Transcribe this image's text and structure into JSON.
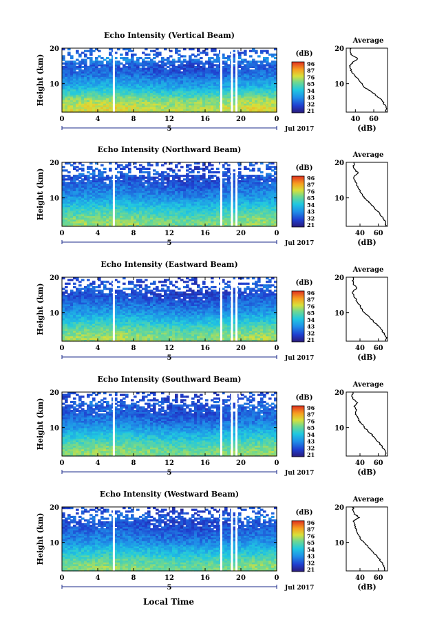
{
  "figure": {
    "x_axis_label": "Local Time",
    "date_label": "Jul 2017",
    "day_label": "5",
    "colorbar_unit": "(dB)",
    "colorbar_ticks": [
      "96",
      "87",
      "76",
      "65",
      "54",
      "43",
      "32",
      "21"
    ],
    "average_title": "Average",
    "average_xlabel": "(dB)"
  },
  "chart_data": [
    {
      "type": "heatmap",
      "title": "Echo Intensity (Vertical Beam)",
      "ylabel": "Height (km)",
      "xlabel": "Local Time",
      "x_ticks": [
        "0",
        "4",
        "8",
        "12",
        "16",
        "20",
        "0"
      ],
      "y_ticks": [
        "10",
        "20"
      ],
      "xlim": [
        0,
        24
      ],
      "ylim": [
        2,
        20
      ],
      "zlim_db": [
        21,
        96
      ],
      "data_gaps_hours": [
        5.8,
        17.8,
        19.0,
        19.5
      ],
      "average_profile": {
        "x_ticks": [
          "40",
          "60"
        ],
        "xlim": [
          30,
          75
        ],
        "heights_km": [
          2,
          3,
          4,
          5,
          6,
          7,
          8,
          9,
          10,
          11,
          12,
          13,
          14,
          15,
          16,
          17,
          18,
          19,
          20
        ],
        "intensity_db": [
          73,
          74,
          72,
          70,
          66,
          61,
          56,
          50,
          47,
          44,
          40,
          37,
          35,
          34,
          37,
          43,
          36,
          34,
          35
        ]
      }
    },
    {
      "type": "heatmap",
      "title": "Echo Intensity (Northward Beam)",
      "ylabel": "Height (km)",
      "xlabel": "Local Time",
      "x_ticks": [
        "0",
        "4",
        "8",
        "12",
        "16",
        "20",
        "0"
      ],
      "y_ticks": [
        "10",
        "20"
      ],
      "xlim": [
        0,
        24
      ],
      "ylim": [
        2,
        20
      ],
      "zlim_db": [
        21,
        96
      ],
      "data_gaps_hours": [
        5.8,
        17.8,
        19.0,
        19.5
      ],
      "average_profile": {
        "x_ticks": [
          "40",
          "60"
        ],
        "xlim": [
          25,
          70
        ],
        "heights_km": [
          2,
          3,
          4,
          5,
          6,
          7,
          8,
          9,
          10,
          11,
          12,
          13,
          14,
          15,
          16,
          17,
          18,
          19,
          20
        ],
        "intensity_db": [
          68,
          68,
          66,
          63,
          60,
          56,
          53,
          49,
          45,
          42,
          40,
          38,
          36,
          34,
          33,
          38,
          34,
          33,
          34
        ]
      }
    },
    {
      "type": "heatmap",
      "title": "Echo Intensity (Eastward Beam)",
      "ylabel": "Height (km)",
      "xlabel": "Local Time",
      "x_ticks": [
        "0",
        "4",
        "8",
        "12",
        "16",
        "20",
        "0"
      ],
      "y_ticks": [
        "10",
        "20"
      ],
      "xlim": [
        0,
        24
      ],
      "ylim": [
        2,
        20
      ],
      "zlim_db": [
        21,
        96
      ],
      "data_gaps_hours": [
        5.8,
        17.8,
        19.0,
        19.5
      ],
      "average_profile": {
        "x_ticks": [
          "40",
          "60"
        ],
        "xlim": [
          25,
          70
        ],
        "heights_km": [
          2,
          3,
          4,
          5,
          6,
          7,
          8,
          9,
          10,
          11,
          12,
          13,
          14,
          15,
          16,
          17,
          18,
          19,
          20
        ],
        "intensity_db": [
          68,
          69,
          67,
          64,
          61,
          57,
          53,
          49,
          45,
          42,
          40,
          37,
          35,
          33,
          32,
          37,
          33,
          32,
          33
        ]
      }
    },
    {
      "type": "heatmap",
      "title": "Echo Intensity (Southward Beam)",
      "ylabel": "Height (km)",
      "xlabel": "Local Time",
      "x_ticks": [
        "0",
        "4",
        "8",
        "12",
        "16",
        "20",
        "0"
      ],
      "y_ticks": [
        "10",
        "20"
      ],
      "xlim": [
        0,
        24
      ],
      "ylim": [
        2,
        20
      ],
      "zlim_db": [
        21,
        96
      ],
      "data_gaps_hours": [
        5.8,
        17.8,
        19.0,
        19.5
      ],
      "average_profile": {
        "x_ticks": [
          "40",
          "60"
        ],
        "xlim": [
          25,
          70
        ],
        "heights_km": [
          2,
          3,
          4,
          5,
          6,
          7,
          8,
          9,
          10,
          11,
          12,
          13,
          14,
          15,
          16,
          17,
          18,
          19,
          20
        ],
        "intensity_db": [
          67,
          68,
          66,
          63,
          60,
          56,
          53,
          49,
          45,
          42,
          39,
          37,
          35,
          36,
          34,
          37,
          33,
          31,
          33
        ]
      }
    },
    {
      "type": "heatmap",
      "title": "Echo Intensity (Westward Beam)",
      "ylabel": "Height (km)",
      "xlabel": "Local Time",
      "x_ticks": [
        "0",
        "4",
        "8",
        "12",
        "16",
        "20",
        "0"
      ],
      "y_ticks": [
        "10",
        "20"
      ],
      "xlim": [
        0,
        24
      ],
      "ylim": [
        2,
        20
      ],
      "zlim_db": [
        21,
        96
      ],
      "data_gaps_hours": [
        5.8,
        17.8,
        19.0,
        19.5
      ],
      "average_profile": {
        "x_ticks": [
          "40",
          "60"
        ],
        "xlim": [
          25,
          70
        ],
        "heights_km": [
          2,
          3,
          4,
          5,
          6,
          7,
          8,
          9,
          10,
          11,
          12,
          13,
          14,
          15,
          16,
          17,
          18,
          19,
          20
        ],
        "intensity_db": [
          66,
          67,
          65,
          62,
          59,
          55,
          52,
          48,
          44,
          41,
          39,
          37,
          35,
          34,
          33,
          39,
          34,
          32,
          33
        ]
      }
    }
  ]
}
